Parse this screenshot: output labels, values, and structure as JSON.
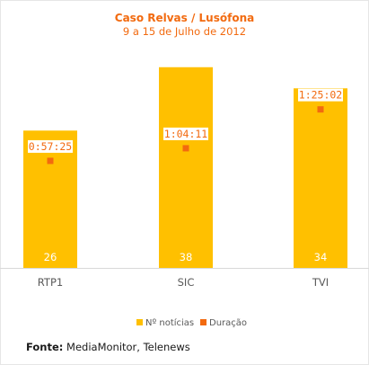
{
  "chart_data": {
    "type": "bar",
    "title": "Caso Relvas / Lusófona",
    "subtitle": "9 a 15 de Julho de 2012",
    "categories": [
      "RTP1",
      "SIC",
      "TVI"
    ],
    "series": [
      {
        "name": "Nº notícias",
        "type": "bar",
        "values": [
          26,
          38,
          34
        ],
        "color": "#ffc000"
      },
      {
        "name": "Duração",
        "type": "scatter",
        "values_seconds": [
          3445,
          3851,
          5102
        ],
        "labels": [
          "0:57:25",
          "1:04:11",
          "1:25:02"
        ],
        "color": "#f26a0f"
      }
    ],
    "ylim_bars": [
      0,
      40
    ],
    "ylim_duration_seconds": [
      0,
      6800
    ],
    "grid": false,
    "legend_position": "bottom"
  },
  "source": {
    "label": "Fonte:",
    "text": " MediaMonitor, Telenews"
  }
}
